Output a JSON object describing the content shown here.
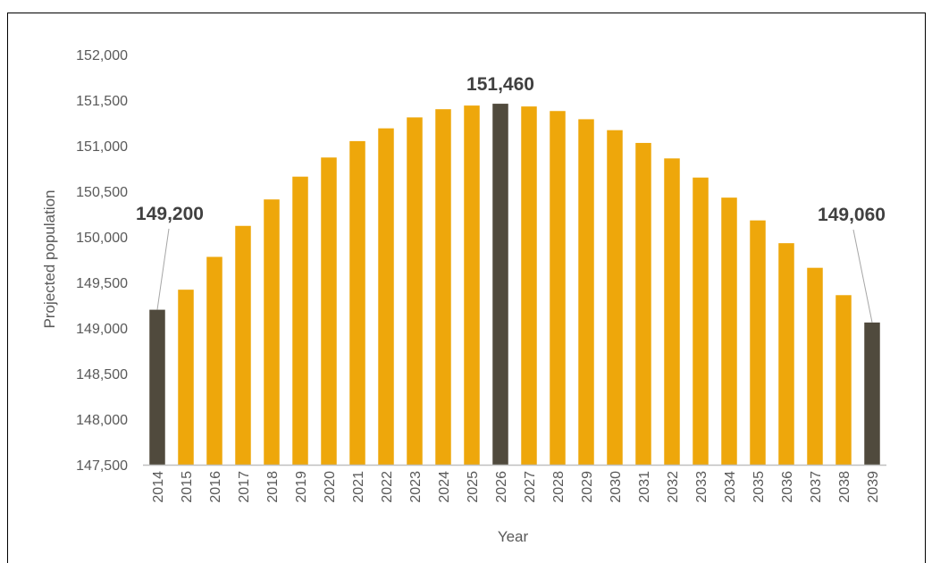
{
  "chart_data": {
    "type": "bar",
    "title": "",
    "xlabel": "Year",
    "ylabel": "Projected population",
    "ylim": [
      147500,
      152000
    ],
    "ytick_step": 500,
    "grid": false,
    "legend": "none",
    "colors": {
      "default_bar": "#EEA70B",
      "highlight_bar": "#504A3D",
      "axis": "#BFBFBF",
      "text": "#595959",
      "annotation": "#404040",
      "leader_line": "#A6A6A6"
    },
    "categories": [
      "2014",
      "2015",
      "2016",
      "2017",
      "2018",
      "2019",
      "2020",
      "2021",
      "2022",
      "2023",
      "2024",
      "2025",
      "2026",
      "2027",
      "2028",
      "2029",
      "2030",
      "2031",
      "2032",
      "2033",
      "2034",
      "2035",
      "2036",
      "2037",
      "2038",
      "2039"
    ],
    "values": [
      149200,
      149420,
      149780,
      150120,
      150410,
      150660,
      150870,
      151050,
      151190,
      151310,
      151400,
      151440,
      151460,
      151430,
      151380,
      151290,
      151170,
      151030,
      150860,
      150650,
      150430,
      150180,
      149930,
      149660,
      149360,
      149060
    ],
    "highlight_indices": [
      0,
      12,
      25
    ],
    "annotations": [
      {
        "index": 0,
        "text": "149,200"
      },
      {
        "index": 12,
        "text": "151,460"
      },
      {
        "index": 25,
        "text": "149,060"
      }
    ]
  }
}
